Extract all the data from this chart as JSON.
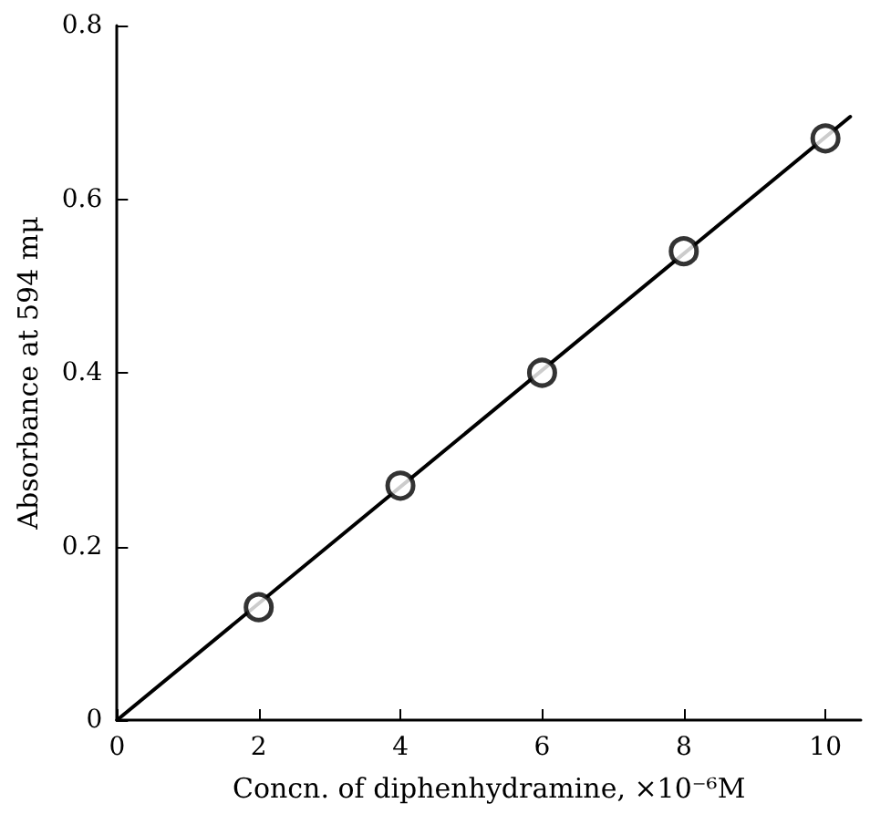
{
  "chart_data": {
    "type": "scatter",
    "xlabel": "Concn. of diphenhydramine, ×10⁻⁶M",
    "ylabel": "Absorbance at 594 mμ",
    "x": [
      2,
      4,
      6,
      8,
      10
    ],
    "series": [
      {
        "color": "#000000",
        "values": [
          0.13,
          0.27,
          0.4,
          0.54,
          0.67
        ]
      },
      {
        "type": "line",
        "marker": "none",
        "color": "#000000",
        "x": [
          0,
          10.35
        ],
        "values": [
          0,
          0.695
        ]
      }
    ],
    "marker": "circle",
    "line_style": "solid",
    "grid": false,
    "xlim": [
      0,
      10.5
    ],
    "xticks": [
      0,
      2,
      4,
      6,
      8,
      10
    ],
    "ylim": [
      0,
      0.8
    ],
    "yticks": [
      0,
      0.2,
      0.4,
      0.6,
      0.8
    ]
  }
}
